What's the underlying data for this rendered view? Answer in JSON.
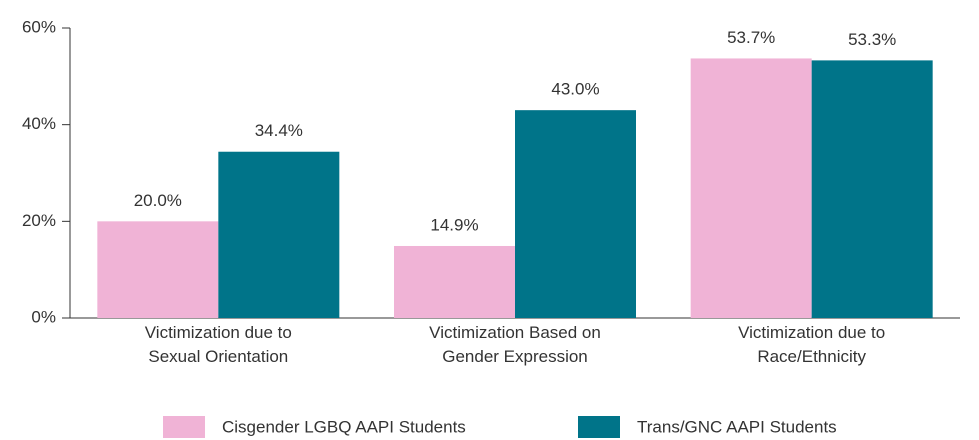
{
  "chart_data": {
    "type": "bar",
    "categories": [
      "Victimization due to\nSexual Orientation",
      "Victimization Based on\nGender Expression",
      "Victimization due to\nRace/Ethnicity"
    ],
    "series": [
      {
        "name": "Cisgender LGBQ AAPI Students",
        "color": "#f0b3d6",
        "values": [
          20.0,
          14.9,
          53.7
        ],
        "value_labels": [
          "20.0%",
          "14.9%",
          "53.7%"
        ]
      },
      {
        "name": "Trans/GNC AAPI Students",
        "color": "#007489",
        "values": [
          34.4,
          43.0,
          53.3
        ],
        "value_labels": [
          "34.4%",
          "43.0%",
          "53.3%"
        ]
      }
    ],
    "ylim": [
      0,
      60
    ],
    "yticks": [
      {
        "value": 0,
        "label": "0%"
      },
      {
        "value": 20,
        "label": "20%"
      },
      {
        "value": 40,
        "label": "40%"
      },
      {
        "value": 60,
        "label": "60%"
      }
    ],
    "legend": "bottom"
  }
}
